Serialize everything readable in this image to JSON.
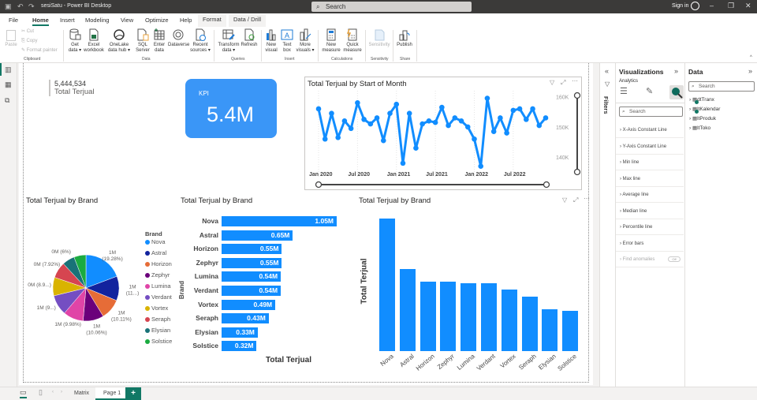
{
  "window": {
    "title": "sesiSatu - Power BI Desktop",
    "search_placeholder": "Search",
    "sign_in": "Sign in",
    "controls": {
      "minimize": "–",
      "restore": "❐",
      "close": "✕"
    }
  },
  "menu_tabs": [
    {
      "label": "File"
    },
    {
      "label": "Home",
      "active": true
    },
    {
      "label": "Insert"
    },
    {
      "label": "Modeling"
    },
    {
      "label": "View"
    },
    {
      "label": "Optimize"
    },
    {
      "label": "Help"
    },
    {
      "label": "Format",
      "contextual": true
    },
    {
      "label": "Data / Drill",
      "contextual": true
    }
  ],
  "ribbon": {
    "clipboard": {
      "paste": "Paste",
      "cut": "Cut",
      "copy": "Copy",
      "format_painter": "Format painter",
      "group": "Clipboard"
    },
    "data": {
      "get_data": "Get data ▾",
      "excel": "Excel workbook",
      "onelake": "OneLake data hub ▾",
      "sql": "SQL Server",
      "enter_data": "Enter data",
      "dataverse": "Dataverse",
      "recent": "Recent sources ▾",
      "group": "Data"
    },
    "queries": {
      "transform": "Transform data ▾",
      "refresh": "Refresh",
      "group": "Queries"
    },
    "insert": {
      "new_visual": "New visual",
      "text_box": "Text box",
      "more_visuals": "More visuals ▾",
      "group": "Insert"
    },
    "calculations": {
      "new_measure": "New measure",
      "quick_measure": "Quick measure",
      "group": "Calculations"
    },
    "sensitivity": {
      "label": "Sensitivity",
      "group": "Sensitivity"
    },
    "share": {
      "publish": "Publish",
      "group": "Share"
    }
  },
  "card": {
    "value": "5,444,534",
    "label": "Total Terjual"
  },
  "kpi": {
    "label": "KPI",
    "value": "5.4M",
    "color": "#3a96f7"
  },
  "accent_color": "#118dff",
  "chart_data": [
    {
      "type": "line",
      "title": "Total Terjual by Start of Month",
      "xlabel": "",
      "ylabel": "",
      "x_ticks": [
        "Jan 2020",
        "Jul 2020",
        "Jan 2021",
        "Jul 2021",
        "Jan 2022",
        "Jul 2022"
      ],
      "y_ticks": [
        "140K",
        "150K",
        "160K"
      ],
      "ylim": [
        133000,
        162000
      ],
      "x": [
        "2020-01",
        "2020-02",
        "2020-03",
        "2020-04",
        "2020-05",
        "2020-06",
        "2020-07",
        "2020-08",
        "2020-09",
        "2020-10",
        "2020-11",
        "2020-12",
        "2021-01",
        "2021-02",
        "2021-03",
        "2021-04",
        "2021-05",
        "2021-06",
        "2021-07",
        "2021-08",
        "2021-09",
        "2021-10",
        "2021-11",
        "2021-12",
        "2022-01",
        "2022-02",
        "2022-03",
        "2022-04",
        "2022-05",
        "2022-06",
        "2022-07",
        "2022-08",
        "2022-09",
        "2022-10",
        "2022-11",
        "2022-12"
      ],
      "values": [
        156000,
        146000,
        154500,
        146500,
        152000,
        149500,
        158000,
        152500,
        151000,
        153000,
        145500,
        154500,
        157500,
        138000,
        154500,
        143000,
        151000,
        152000,
        151500,
        156500,
        150500,
        153000,
        152000,
        150000,
        146000,
        137000,
        159500,
        148500,
        153000,
        148000,
        155500,
        156000,
        152500,
        156000,
        150500,
        153000
      ]
    },
    {
      "type": "pie",
      "title": "Total Terjual by Brand",
      "legend_title": "Brand",
      "legend_position": "right",
      "categories": [
        "Nova",
        "Astral",
        "Horizon",
        "Zephyr",
        "Lumina",
        "Verdant",
        "Vortex",
        "Seraph",
        "Elysian",
        "Solstice"
      ],
      "values": [
        1050000,
        650000,
        550000,
        550000,
        540000,
        540000,
        490000,
        430000,
        330000,
        320000
      ],
      "data_labels": [
        "1M (19.28%)",
        "1M (11...)",
        "1M (10.11%)",
        "1M (10.06%)",
        "1M (9.98%)",
        "1M (9...)",
        "0M (8.9...)",
        "0M (7.92%)",
        "0M (6%)",
        ""
      ],
      "colors": [
        "#118dff",
        "#12239e",
        "#e66c37",
        "#6b007b",
        "#e044a7",
        "#744ec2",
        "#d9b300",
        "#d64550",
        "#197278",
        "#1aab40"
      ]
    },
    {
      "type": "bar",
      "orientation": "horizontal",
      "title": "Total Terjual by Brand",
      "xlabel": "Total Terjual",
      "ylabel": "Brand",
      "categories": [
        "Nova",
        "Astral",
        "Horizon",
        "Zephyr",
        "Lumina",
        "Verdant",
        "Vortex",
        "Seraph",
        "Elysian",
        "Solstice"
      ],
      "values": [
        1050000,
        650000,
        550000,
        550000,
        540000,
        540000,
        490000,
        430000,
        330000,
        320000
      ],
      "data_labels": [
        "1.05M",
        "0.65M",
        "0.55M",
        "0.55M",
        "0.54M",
        "0.54M",
        "0.49M",
        "0.43M",
        "0.33M",
        "0.32M"
      ]
    },
    {
      "type": "bar",
      "orientation": "vertical",
      "title": "Total Terjual by Brand",
      "xlabel": "",
      "ylabel": "Total Terjual",
      "categories": [
        "Nova",
        "Astral",
        "Horizon",
        "Zephyr",
        "Lumina",
        "Verdant",
        "Vortex",
        "Seraph",
        "Elysian",
        "Solstice"
      ],
      "values": [
        1050000,
        650000,
        550000,
        550000,
        540000,
        540000,
        490000,
        430000,
        330000,
        320000
      ]
    }
  ],
  "filters_pane": {
    "label": "Filters"
  },
  "visualizations_pane": {
    "title": "Visualizations",
    "subtitle": "Analytics",
    "search_placeholder": "Search",
    "sections": [
      "X-Axis Constant Line",
      "Y-Axis Constant Line",
      "Min line",
      "Max line",
      "Average line",
      "Median line",
      "Percentile line",
      "Error bars",
      "Find anomalies"
    ],
    "find_anomalies_toggle": "Off"
  },
  "data_pane": {
    "title": "Data",
    "search_placeholder": "Search",
    "tables": [
      "dtTranx",
      "ltKalendar",
      "ltProduk",
      "ltToko"
    ]
  },
  "pages": [
    {
      "label": "Matrix"
    },
    {
      "label": "Page 1",
      "active": true
    }
  ],
  "add_page": "+"
}
